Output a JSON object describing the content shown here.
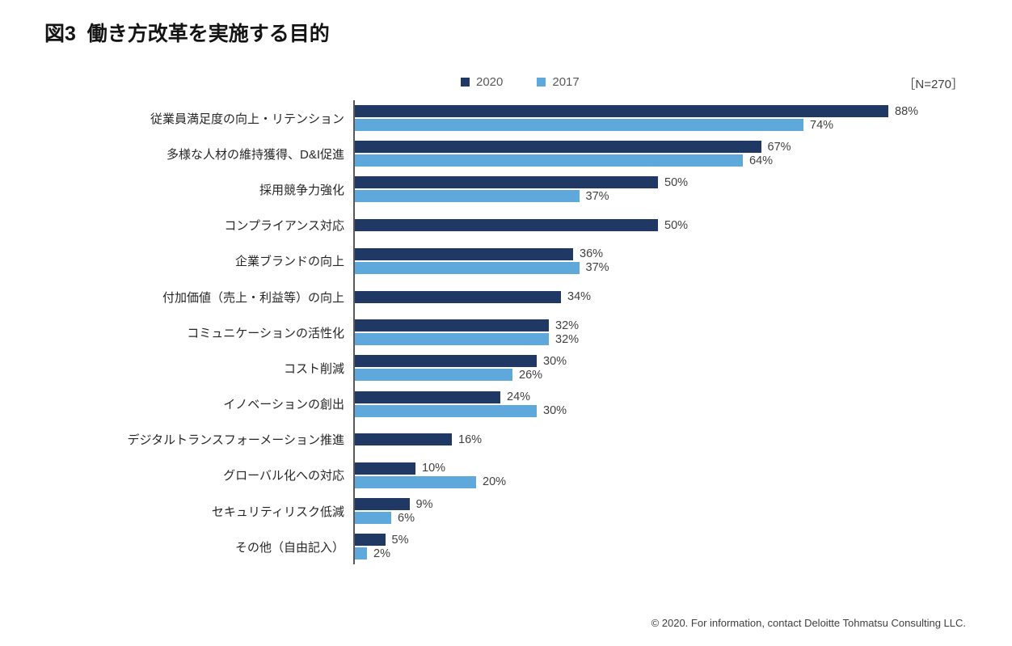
{
  "title": "図3  働き方改革を実施する目的",
  "sample_size": "［N=270］",
  "footer": "© 2020. For information, contact Deloitte Tohmatsu Consulting LLC.",
  "chart_data": {
    "type": "bar",
    "orientation": "horizontal",
    "title": "図3  働き方改革を実施する目的",
    "value_unit": "%",
    "xlim": [
      0,
      100
    ],
    "grid": false,
    "legend_position": "top-center",
    "sample_size": 270,
    "categories": [
      "従業員満足度の向上・リテンション",
      "多様な人材の維持獲得、D&I促進",
      "採用競争力強化",
      "コンプライアンス対応",
      "企業ブランドの向上",
      "付加価値（売上・利益等）の向上",
      "コミュニケーションの活性化",
      "コスト削減",
      "イノベーションの創出",
      "デジタルトランスフォーメーション推進",
      "グローバル化への対応",
      "セキュリティリスク低減",
      "その他（自由記入）"
    ],
    "series": [
      {
        "name": "2020",
        "color": "#1F3864",
        "values": [
          88,
          67,
          50,
          50,
          36,
          34,
          32,
          30,
          24,
          16,
          10,
          9,
          5
        ]
      },
      {
        "name": "2017",
        "color": "#5FA8DC",
        "values": [
          74,
          64,
          37,
          null,
          37,
          null,
          32,
          26,
          30,
          null,
          20,
          6,
          2
        ]
      }
    ]
  }
}
